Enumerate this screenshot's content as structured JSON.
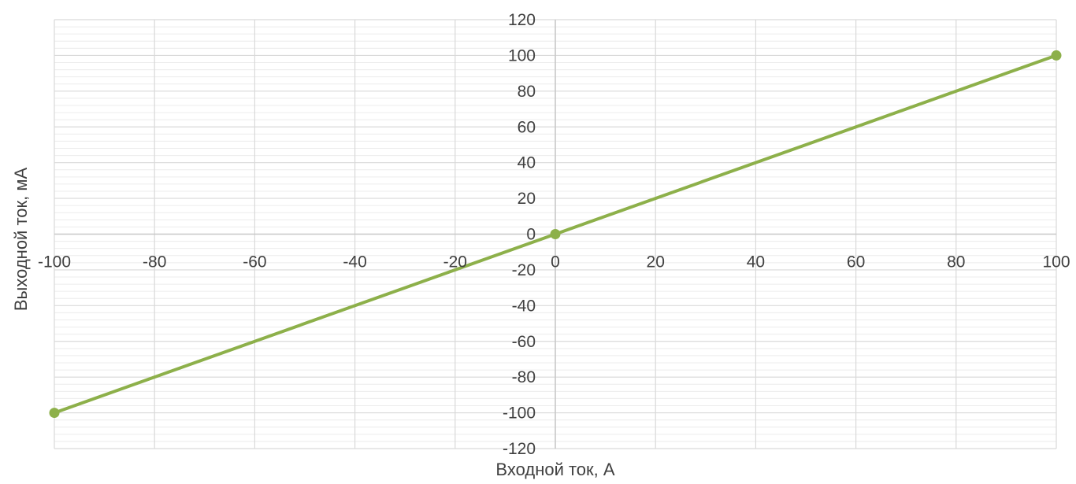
{
  "chart_data": {
    "type": "scatter",
    "xlabel": "Входной ток, А",
    "ylabel": "Выходной ток, мА",
    "xlim": [
      -100,
      100
    ],
    "ylim": [
      -120,
      120
    ],
    "x_ticks": [
      -100,
      -80,
      -60,
      -40,
      -20,
      0,
      20,
      40,
      60,
      80,
      100
    ],
    "y_ticks": [
      120,
      100,
      80,
      60,
      40,
      20,
      0,
      -20,
      -40,
      -60,
      -80,
      -100,
      -120
    ],
    "grid": true,
    "minor_grid_y": true,
    "series": [
      {
        "color": "#8db04a",
        "line": true,
        "markers": true,
        "points": [
          {
            "x": -100,
            "y": -100
          },
          {
            "x": 0,
            "y": 0
          },
          {
            "x": 100,
            "y": 100
          }
        ]
      }
    ],
    "colors": {
      "major_grid": "#d9d9d9",
      "minor_grid": "#ececec",
      "axis_line": "#c8c8c8",
      "text": "#404040"
    }
  }
}
